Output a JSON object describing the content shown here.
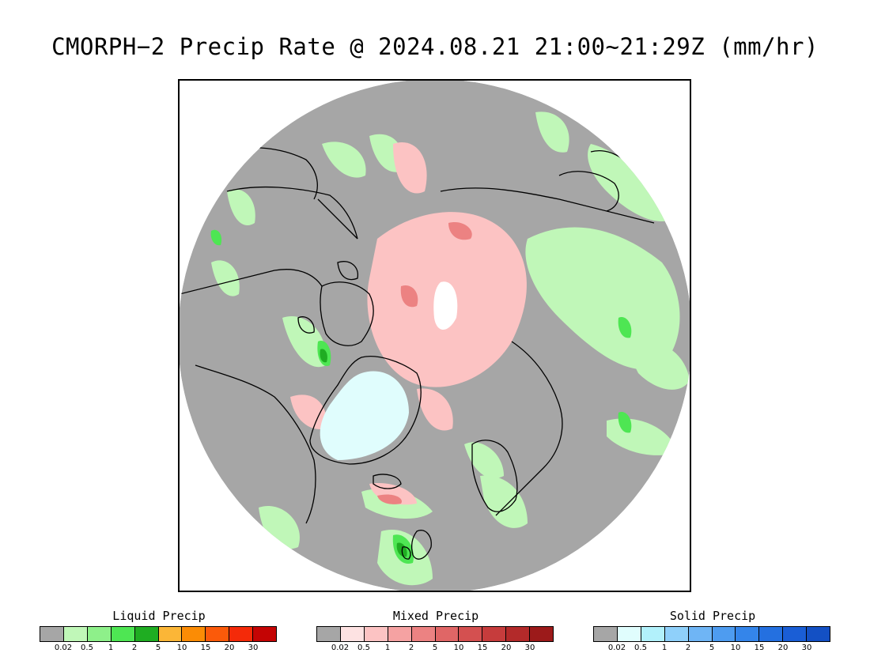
{
  "title": "CMORPH−2 Precip Rate @ 2024.08.21 21:00~21:29Z (mm/hr)",
  "map": {
    "projection": "north-polar-stereographic",
    "background_color": "#a6a6a6",
    "coastline_color": "#000000",
    "icons": {
      "frame": "map-frame",
      "disc": "polar-disc"
    }
  },
  "legends": [
    {
      "title": "Liquid Precip",
      "colors": [
        "#a6a6a6",
        "#c0f7b8",
        "#8ef08a",
        "#4ee653",
        "#1fad22",
        "#fbb637",
        "#fb8c05",
        "#fb5a0a",
        "#f42a09",
        "#c40404"
      ],
      "ticks": [
        "0.02",
        "0.5",
        "1",
        "2",
        "5",
        "10",
        "15",
        "20",
        "30"
      ]
    },
    {
      "title": "Mixed Precip",
      "colors": [
        "#a6a6a6",
        "#fde2e2",
        "#fcc3c3",
        "#f5a2a2",
        "#ec8282",
        "#e06666",
        "#d45050",
        "#c63c3c",
        "#b32a2a",
        "#9c1a1a"
      ],
      "ticks": [
        "0.02",
        "0.5",
        "1",
        "2",
        "5",
        "10",
        "15",
        "20",
        "30"
      ]
    },
    {
      "title": "Solid Precip",
      "colors": [
        "#a6a6a6",
        "#e0fdfd",
        "#b2f1fb",
        "#8fd0fa",
        "#6fb5f5",
        "#4e9cf0",
        "#3485ea",
        "#2470e0",
        "#1a5ed6",
        "#1350c4"
      ],
      "ticks": [
        "0.02",
        "0.5",
        "1",
        "2",
        "5",
        "10",
        "15",
        "20",
        "30"
      ]
    }
  ]
}
